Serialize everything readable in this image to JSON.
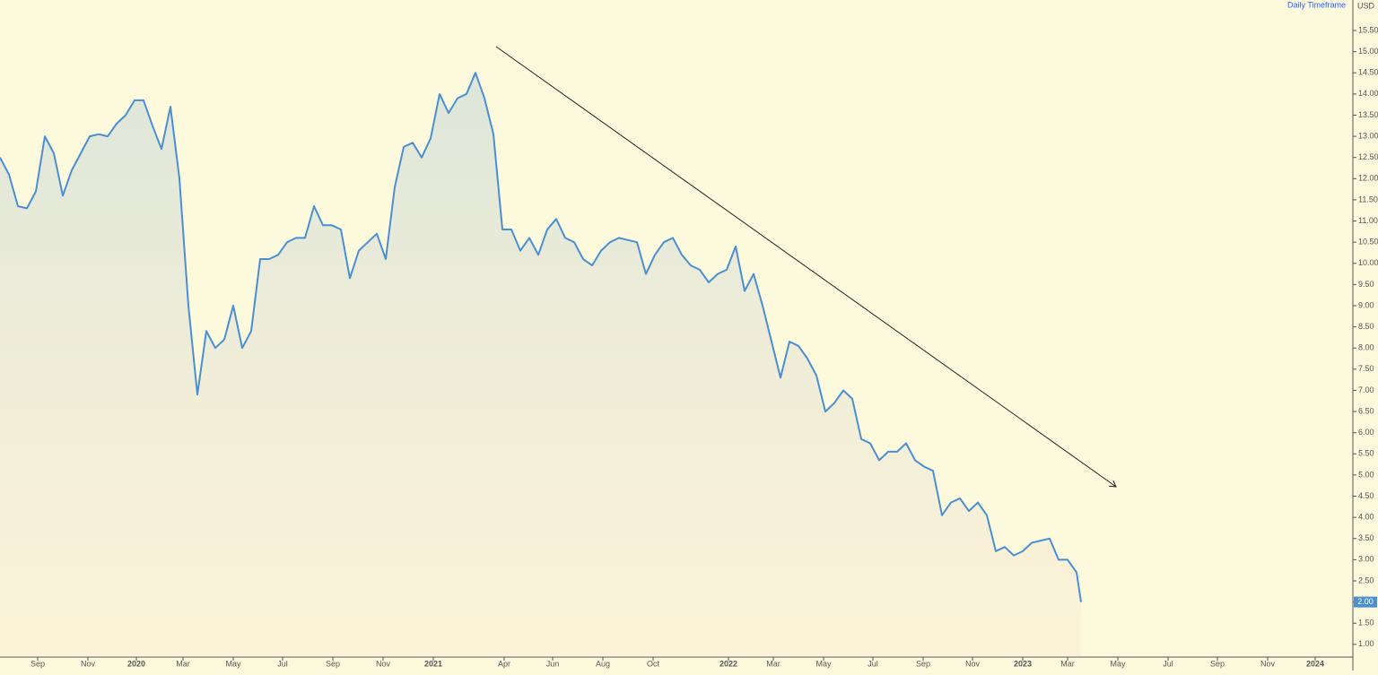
{
  "chart_data": {
    "type": "area",
    "currency_label": "USD",
    "timeframe_label": "Daily Timeframe",
    "last_value_label": "2.00",
    "color": "#4a8fd0",
    "x": [
      0,
      1,
      2,
      3,
      4,
      5,
      6,
      7,
      8,
      9,
      10,
      11,
      12,
      13,
      14,
      15,
      16,
      17,
      18,
      19,
      20,
      21,
      22,
      23,
      24,
      25,
      26,
      27,
      28,
      29,
      30,
      31,
      32,
      33,
      34,
      35,
      36,
      37,
      38,
      39,
      40,
      41,
      42,
      43,
      44,
      45,
      46,
      47,
      48,
      49,
      50,
      51,
      52,
      53,
      54,
      55,
      56,
      57,
      58,
      59,
      60,
      61,
      62,
      63,
      64,
      65,
      66,
      67,
      68,
      69,
      70,
      71,
      72,
      73,
      74,
      75,
      76,
      77,
      78,
      79,
      80,
      81,
      82,
      83,
      84,
      85,
      86,
      87,
      88,
      89,
      90,
      91,
      92,
      93,
      94,
      95,
      96,
      97,
      98,
      99,
      100,
      101,
      102,
      103,
      104,
      105,
      106,
      107,
      108,
      109,
      110,
      111,
      112,
      113,
      114,
      115,
      116,
      117,
      118,
      119,
      120,
      120.5
    ],
    "values": [
      12.5,
      12.1,
      11.35,
      11.3,
      11.7,
      13.0,
      12.6,
      11.6,
      12.2,
      12.6,
      13.0,
      13.05,
      13.0,
      13.3,
      13.5,
      13.85,
      13.85,
      13.25,
      12.7,
      13.7,
      12.0,
      9.0,
      6.9,
      8.4,
      8.0,
      8.2,
      9.0,
      8.0,
      8.4,
      10.1,
      10.1,
      10.2,
      10.5,
      10.6,
      10.6,
      11.35,
      10.9,
      10.9,
      10.8,
      9.65,
      10.3,
      10.5,
      10.7,
      10.1,
      11.8,
      12.75,
      12.85,
      12.5,
      12.95,
      14.0,
      13.55,
      13.9,
      14.0,
      14.5,
      13.9,
      13.05,
      10.8,
      10.8,
      10.3,
      10.6,
      10.2,
      10.8,
      11.05,
      10.6,
      10.5,
      10.1,
      9.95,
      10.3,
      10.5,
      10.6,
      10.55,
      10.5,
      9.75,
      10.2,
      10.5,
      10.6,
      10.2,
      9.95,
      9.85,
      9.55,
      9.75,
      9.85,
      10.4,
      9.35,
      9.75,
      9.0,
      8.15,
      7.3,
      8.15,
      8.05,
      7.75,
      7.35,
      6.5,
      6.7,
      7.0,
      6.8,
      5.85,
      5.75,
      5.35,
      5.55,
      5.55,
      5.75,
      5.35,
      5.2,
      5.1,
      4.05,
      4.35,
      4.45,
      4.15,
      4.35,
      4.05,
      3.2,
      3.3,
      3.1,
      3.2,
      3.4,
      3.45,
      3.5,
      3.0,
      3.0,
      2.7,
      2.0
    ],
    "xlim": [
      0,
      150.8
    ],
    "xticks": [
      {
        "value": 4.2,
        "label": "Sep"
      },
      {
        "value": 9.8,
        "label": "Nov"
      },
      {
        "value": 15.2,
        "label": "2020"
      },
      {
        "value": 20.4,
        "label": "Mar"
      },
      {
        "value": 26.0,
        "label": "May"
      },
      {
        "value": 31.5,
        "label": "Jul"
      },
      {
        "value": 37.1,
        "label": "Sep"
      },
      {
        "value": 42.7,
        "label": "Nov"
      },
      {
        "value": 48.3,
        "label": "2021"
      },
      {
        "value": 56.2,
        "label": "Apr"
      },
      {
        "value": 61.6,
        "label": "Jun"
      },
      {
        "value": 67.2,
        "label": "Aug"
      },
      {
        "value": 72.8,
        "label": "Oct"
      },
      {
        "value": 81.2,
        "label": "2022"
      },
      {
        "value": 86.2,
        "label": "Mar"
      },
      {
        "value": 91.8,
        "label": "May"
      },
      {
        "value": 97.3,
        "label": "Jul"
      },
      {
        "value": 102.9,
        "label": "Sep"
      },
      {
        "value": 108.4,
        "label": "Nov"
      },
      {
        "value": 114.0,
        "label": "2023"
      },
      {
        "value": 119.0,
        "label": "Mar"
      },
      {
        "value": 124.6,
        "label": "May"
      },
      {
        "value": 130.2,
        "label": "Jul"
      },
      {
        "value": 135.7,
        "label": "Sep"
      },
      {
        "value": 141.3,
        "label": "Nov"
      },
      {
        "value": 146.6,
        "label": "2024"
      }
    ],
    "ylim": [
      0.7,
      16.22
    ],
    "yticks": [
      {
        "value": 1,
        "label": "1.00"
      },
      {
        "value": 1.5,
        "label": "1.50"
      },
      {
        "value": 2,
        "label": "2.00"
      },
      {
        "value": 2.5,
        "label": "2.50"
      },
      {
        "value": 3,
        "label": "3.00"
      },
      {
        "value": 3.5,
        "label": "3.50"
      },
      {
        "value": 4,
        "label": "4.00"
      },
      {
        "value": 4.5,
        "label": "4.50"
      },
      {
        "value": 5,
        "label": "5.00"
      },
      {
        "value": 5.5,
        "label": "5.50"
      },
      {
        "value": 6,
        "label": "6.00"
      },
      {
        "value": 6.5,
        "label": "6.50"
      },
      {
        "value": 7,
        "label": "7.00"
      },
      {
        "value": 7.5,
        "label": "7.50"
      },
      {
        "value": 8,
        "label": "8.00"
      },
      {
        "value": 8.5,
        "label": "8.50"
      },
      {
        "value": 9,
        "label": "9.00"
      },
      {
        "value": 9.5,
        "label": "9.50"
      },
      {
        "value": 10,
        "label": "10.00"
      },
      {
        "value": 10.5,
        "label": "10.50"
      },
      {
        "value": 11,
        "label": "11.00"
      },
      {
        "value": 11.5,
        "label": "11.50"
      },
      {
        "value": 12,
        "label": "12.00"
      },
      {
        "value": 12.5,
        "label": "12.50"
      },
      {
        "value": 13,
        "label": "13.00"
      },
      {
        "value": 13.5,
        "label": "13.50"
      },
      {
        "value": 14,
        "label": "14.00"
      },
      {
        "value": 14.5,
        "label": "14.50"
      },
      {
        "value": 15,
        "label": "15.00"
      },
      {
        "value": 15.5,
        "label": "15.50"
      }
    ]
  }
}
